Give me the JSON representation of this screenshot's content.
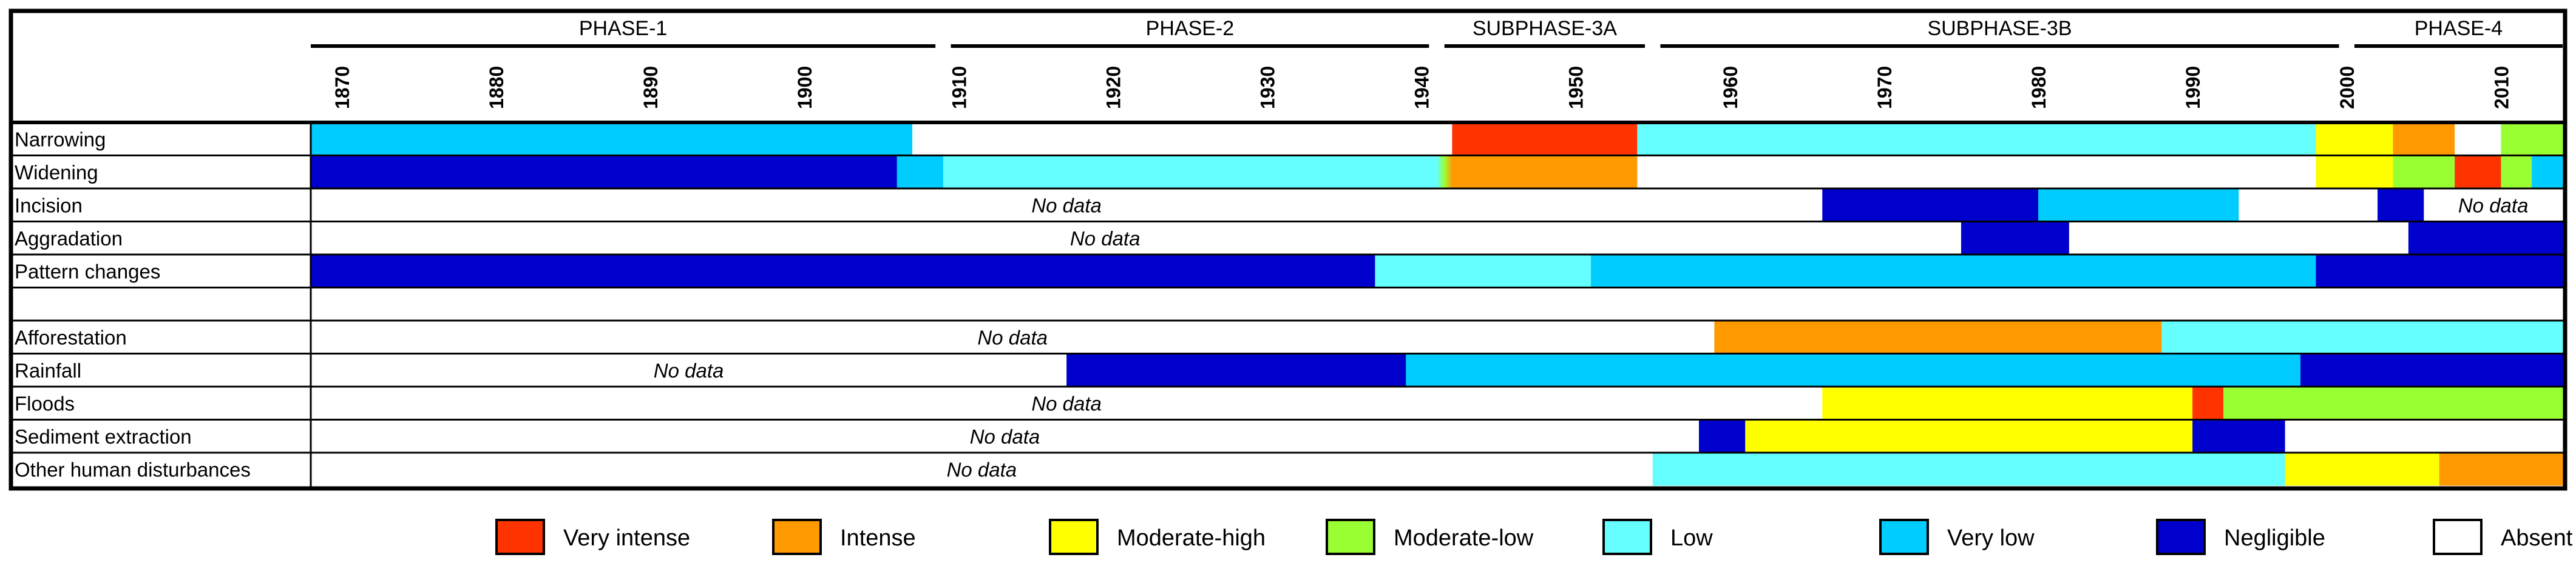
{
  "chart_data": {
    "type": "heatmap",
    "title": "",
    "x_range": [
      1868,
      2014
    ],
    "years": [
      1870,
      1880,
      1890,
      1900,
      1910,
      1920,
      1930,
      1940,
      1950,
      1960,
      1970,
      1980,
      1990,
      2000,
      2010
    ],
    "phases": [
      {
        "label": "PHASE-1",
        "start": 1868,
        "end": 1908.5
      },
      {
        "label": "PHASE-2",
        "start": 1909.5,
        "end": 1940.5
      },
      {
        "label": "SUBPHASE-3A",
        "start": 1941.5,
        "end": 1954.5
      },
      {
        "label": "SUBPHASE-3B",
        "start": 1955.5,
        "end": 1999.5
      },
      {
        "label": "PHASE-4",
        "start": 2000.5,
        "end": 2014
      }
    ],
    "no_data_label": "No data",
    "rows": [
      {
        "label": "Narrowing",
        "segments": [
          {
            "from": 1868,
            "to": 1907,
            "level": "very_low"
          },
          {
            "from": 1907,
            "to": 1909,
            "level": "absent"
          },
          {
            "from": 1909,
            "to": 1940,
            "level": "absent"
          },
          {
            "from": 1940,
            "to": 1942,
            "level": "absent"
          },
          {
            "from": 1942,
            "to": 1954,
            "level": "very_intense"
          },
          {
            "from": 1954,
            "to": 1957,
            "level": "low"
          },
          {
            "from": 1957,
            "to": 1998,
            "level": "low"
          },
          {
            "from": 1998,
            "to": 2001,
            "level": "moderate_high"
          },
          {
            "from": 2001,
            "to": 2003,
            "level": "moderate_high"
          },
          {
            "from": 2003,
            "to": 2007,
            "level": "intense"
          },
          {
            "from": 2007,
            "to": 2010,
            "level": "absent"
          },
          {
            "from": 2010,
            "to": 2014,
            "level": "moderate_low"
          }
        ]
      },
      {
        "label": "Widening",
        "segments": [
          {
            "from": 1868,
            "to": 1906,
            "level": "negligible"
          },
          {
            "from": 1906,
            "to": 1909,
            "level": "very_low"
          },
          {
            "from": 1909,
            "to": 1941,
            "level": "low"
          },
          {
            "from": 1941,
            "to": 1942,
            "level": "moderate_low"
          },
          {
            "from": 1942,
            "to": 1954,
            "level": "intense"
          },
          {
            "from": 1954,
            "to": 1956,
            "level": "absent"
          },
          {
            "from": 1956,
            "to": 1998,
            "level": "absent"
          },
          {
            "from": 1998,
            "to": 2003,
            "level": "moderate_high"
          },
          {
            "from": 2003,
            "to": 2007,
            "level": "moderate_low"
          },
          {
            "from": 2007,
            "to": 2010,
            "level": "very_intense"
          },
          {
            "from": 2010,
            "to": 2012,
            "level": "moderate_low"
          },
          {
            "from": 2012,
            "to": 2014,
            "level": "very_low"
          }
        ]
      },
      {
        "label": "Incision",
        "segments": [
          {
            "from": 1868,
            "to": 1966,
            "level": "absent",
            "label": "No data"
          },
          {
            "from": 1966,
            "to": 1980,
            "level": "negligible"
          },
          {
            "from": 1980,
            "to": 1993,
            "level": "very_low"
          },
          {
            "from": 1993,
            "to": 1996,
            "level": "absent"
          },
          {
            "from": 1996,
            "to": 2002,
            "level": "absent"
          },
          {
            "from": 2002,
            "to": 2005,
            "level": "negligible"
          },
          {
            "from": 2005,
            "to": 2014,
            "level": "absent",
            "label": "No data"
          }
        ]
      },
      {
        "label": "Aggradation",
        "segments": [
          {
            "from": 1868,
            "to": 1971,
            "level": "absent",
            "label": "No data"
          },
          {
            "from": 1971,
            "to": 1975,
            "level": "absent"
          },
          {
            "from": 1975,
            "to": 1982,
            "level": "negligible"
          },
          {
            "from": 1982,
            "to": 1986,
            "level": "absent"
          },
          {
            "from": 1986,
            "to": 2004,
            "level": "absent"
          },
          {
            "from": 2004,
            "to": 2014,
            "level": "negligible"
          }
        ]
      },
      {
        "label": "Pattern changes",
        "segments": [
          {
            "from": 1868,
            "to": 1937,
            "level": "negligible"
          },
          {
            "from": 1937,
            "to": 1940,
            "level": "low"
          },
          {
            "from": 1940,
            "to": 1951,
            "level": "low"
          },
          {
            "from": 1951,
            "to": 1998,
            "level": "very_low"
          },
          {
            "from": 1998,
            "to": 2014,
            "level": "negligible"
          }
        ]
      },
      {
        "label": "",
        "spacer": true,
        "segments": []
      },
      {
        "label": "Afforestation",
        "segments": [
          {
            "from": 1868,
            "to": 1959,
            "level": "absent",
            "label": "No data"
          },
          {
            "from": 1959,
            "to": 1988,
            "level": "intense"
          },
          {
            "from": 1988,
            "to": 1992,
            "level": "low"
          },
          {
            "from": 1992,
            "to": 2014,
            "level": "low"
          }
        ]
      },
      {
        "label": "Rainfall",
        "segments": [
          {
            "from": 1868,
            "to": 1917,
            "level": "absent",
            "label": "No data"
          },
          {
            "from": 1917,
            "to": 1939,
            "level": "negligible"
          },
          {
            "from": 1939,
            "to": 1943,
            "level": "very_low"
          },
          {
            "from": 1943,
            "to": 1997,
            "level": "very_low"
          },
          {
            "from": 1997,
            "to": 2014,
            "level": "negligible"
          }
        ]
      },
      {
        "label": "Floods",
        "segments": [
          {
            "from": 1868,
            "to": 1966,
            "level": "absent",
            "label": "No data"
          },
          {
            "from": 1966,
            "to": 1990,
            "level": "moderate_high"
          },
          {
            "from": 1990,
            "to": 1992,
            "level": "very_intense"
          },
          {
            "from": 1992,
            "to": 1994,
            "level": "moderate_low"
          },
          {
            "from": 1994,
            "to": 2014,
            "level": "moderate_low"
          }
        ]
      },
      {
        "label": "Sediment extraction",
        "segments": [
          {
            "from": 1868,
            "to": 1958,
            "level": "absent",
            "label": "No data"
          },
          {
            "from": 1958,
            "to": 1961,
            "level": "negligible"
          },
          {
            "from": 1961,
            "to": 1963,
            "level": "moderate_high"
          },
          {
            "from": 1963,
            "to": 1990,
            "level": "moderate_high"
          },
          {
            "from": 1990,
            "to": 1992,
            "level": "negligible"
          },
          {
            "from": 1992,
            "to": 1996,
            "level": "negligible"
          },
          {
            "from": 1996,
            "to": 2014,
            "level": "absent"
          }
        ]
      },
      {
        "label": "Other human disturbances",
        "segments": [
          {
            "from": 1868,
            "to": 1955,
            "level": "absent",
            "label": "No data"
          },
          {
            "from": 1955,
            "to": 1996,
            "level": "low"
          },
          {
            "from": 1996,
            "to": 1999,
            "level": "moderate_high"
          },
          {
            "from": 1999,
            "to": 2006,
            "level": "moderate_high"
          },
          {
            "from": 2006,
            "to": 2014,
            "level": "intense"
          }
        ]
      }
    ],
    "legend": [
      {
        "key": "very_intense",
        "label": "Very intense",
        "color": "#ff3300"
      },
      {
        "key": "intense",
        "label": "Intense",
        "color": "#ff9900"
      },
      {
        "key": "moderate_high",
        "label": "Moderate-high",
        "color": "#ffff00"
      },
      {
        "key": "moderate_low",
        "label": "Moderate-low",
        "color": "#99ff33"
      },
      {
        "key": "low",
        "label": "Low",
        "color": "#66ffff"
      },
      {
        "key": "very_low",
        "label": "Very low",
        "color": "#00ccff"
      },
      {
        "key": "negligible",
        "label": "Negligible",
        "color": "#0000cc"
      },
      {
        "key": "absent",
        "label": "Absent",
        "color": "#ffffff"
      }
    ]
  }
}
